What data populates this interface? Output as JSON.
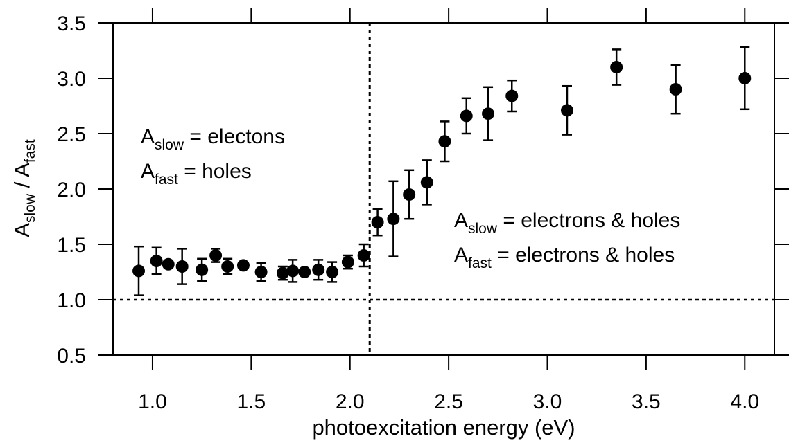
{
  "chart_data": {
    "type": "scatter",
    "xlabel": "photoexcitation energy (eV)",
    "ylabel": {
      "main": "A",
      "sub1": "slow",
      "sep": " / A",
      "sub2": "fast"
    },
    "xlim": [
      0.8,
      4.15
    ],
    "ylim": [
      0.5,
      3.5
    ],
    "x_ticks": [
      1.0,
      1.5,
      2.0,
      2.5,
      3.0,
      3.5,
      4.0
    ],
    "x_tick_labels": [
      "1.0",
      "1.5",
      "2.0",
      "2.5",
      "3.0",
      "3.5",
      "4.0"
    ],
    "y_ticks": [
      0.5,
      1.0,
      1.5,
      2.0,
      2.5,
      3.0,
      3.5
    ],
    "y_tick_labels": [
      "0.5",
      "1.0",
      "1.5",
      "2.0",
      "2.5",
      "3.0",
      "3.5"
    ],
    "grid": false,
    "reference_lines": {
      "horizontal_y": 1.0,
      "vertical_x": 2.1,
      "style": "dotted"
    },
    "marker_color": "#000000",
    "series": [
      {
        "x": [
          0.93,
          1.02,
          1.08,
          1.15,
          1.25,
          1.32,
          1.38,
          1.46,
          1.55,
          1.66,
          1.71,
          1.77,
          1.84,
          1.91,
          1.99,
          2.07,
          2.14,
          2.22,
          2.3,
          2.39,
          2.48,
          2.59,
          2.7,
          2.82,
          3.1,
          3.35,
          3.65,
          4.0
        ],
        "y": [
          1.26,
          1.35,
          1.32,
          1.3,
          1.27,
          1.4,
          1.3,
          1.31,
          1.25,
          1.24,
          1.26,
          1.25,
          1.27,
          1.25,
          1.34,
          1.4,
          1.7,
          1.73,
          1.95,
          2.06,
          2.43,
          2.66,
          2.68,
          2.84,
          2.71,
          3.1,
          2.9,
          3.0
        ],
        "err": [
          0.22,
          0.12,
          0.0,
          0.16,
          0.1,
          0.06,
          0.07,
          0.0,
          0.08,
          0.06,
          0.1,
          0.0,
          0.09,
          0.09,
          0.06,
          0.1,
          0.12,
          0.34,
          0.22,
          0.2,
          0.18,
          0.16,
          0.24,
          0.14,
          0.22,
          0.16,
          0.22,
          0.28
        ]
      }
    ],
    "annotations": [
      {
        "main": "A",
        "sub": "slow",
        "rest": " = electons"
      },
      {
        "main": "A",
        "sub": "fast",
        "rest": " = holes"
      },
      {
        "main": "A",
        "sub": "slow",
        "rest": " = electrons & holes"
      },
      {
        "main": "A",
        "sub": "fast",
        "rest": " = electrons & holes"
      }
    ]
  }
}
